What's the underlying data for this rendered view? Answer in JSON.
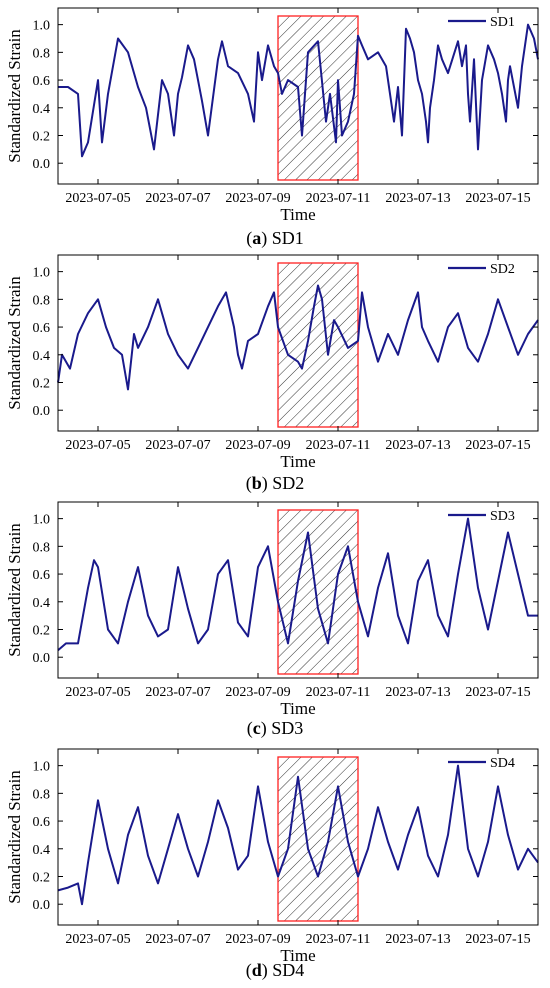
{
  "chart_data": [
    {
      "type": "line",
      "panel": "(a) SD1",
      "caption_letter": "a",
      "caption_name": "SD1",
      "xlabel": "Time",
      "ylabel": "Standardized Strain",
      "xticks": [
        "2023-07-05",
        "2023-07-07",
        "2023-07-09",
        "2023-07-11",
        "2023-07-13",
        "2023-07-15"
      ],
      "xlim": [
        "2023-07-04",
        "2023-07-16"
      ],
      "ylim": [
        -0.15,
        1.12
      ],
      "yticks": [
        "0.0",
        "0.2",
        "0.4",
        "0.6",
        "0.8",
        "1.0"
      ],
      "highlight_range": [
        "2023-07-09 12:00",
        "2023-07-11 12:00"
      ],
      "series": [
        {
          "name": "SD1",
          "color": "#1a1a8c",
          "x_days": [
            0,
            0.25,
            0.5,
            0.6,
            0.75,
            1.0,
            1.1,
            1.25,
            1.5,
            1.75,
            1.9,
            2.0,
            2.2,
            2.4,
            2.6,
            2.75,
            2.9,
            3.0,
            3.1,
            3.25,
            3.4,
            3.5,
            3.6,
            3.75,
            4.0,
            4.1,
            4.25,
            4.5,
            4.75,
            4.9,
            5.0,
            5.1,
            5.25,
            5.4,
            5.5,
            5.6,
            5.75,
            6.0,
            6.1,
            6.25,
            6.5,
            6.7,
            6.8,
            6.95,
            7.0,
            7.1,
            7.25,
            7.4,
            7.5,
            7.6,
            7.75,
            8.0,
            8.2,
            8.4,
            8.5,
            8.6,
            8.7,
            8.8,
            8.9,
            9.0,
            9.1,
            9.2,
            9.25,
            9.3,
            9.4,
            9.5,
            9.6,
            9.75,
            10.0,
            10.1,
            10.2,
            10.25,
            10.3,
            10.4,
            10.5,
            10.6,
            10.75,
            10.9,
            11.0,
            11.1,
            11.2,
            11.25,
            11.3,
            11.4,
            11.5,
            11.6,
            11.75,
            11.9,
            12.0
          ],
          "values": [
            0.55,
            0.55,
            0.5,
            0.05,
            0.15,
            0.6,
            0.15,
            0.5,
            0.9,
            0.8,
            0.65,
            0.55,
            0.4,
            0.1,
            0.6,
            0.5,
            0.2,
            0.5,
            0.62,
            0.85,
            0.75,
            0.6,
            0.45,
            0.2,
            0.75,
            0.88,
            0.7,
            0.65,
            0.5,
            0.3,
            0.8,
            0.6,
            0.85,
            0.7,
            0.65,
            0.5,
            0.6,
            0.55,
            0.2,
            0.8,
            0.88,
            0.3,
            0.5,
            0.15,
            0.6,
            0.2,
            0.3,
            0.5,
            0.92,
            0.85,
            0.75,
            0.8,
            0.7,
            0.3,
            0.55,
            0.2,
            0.97,
            0.9,
            0.8,
            0.6,
            0.5,
            0.3,
            0.15,
            0.4,
            0.6,
            0.85,
            0.75,
            0.65,
            0.88,
            0.7,
            0.85,
            0.5,
            0.3,
            0.75,
            0.1,
            0.6,
            0.85,
            0.75,
            0.65,
            0.5,
            0.3,
            0.6,
            0.7,
            0.55,
            0.4,
            0.7,
            1.0,
            0.9,
            0.75
          ]
        }
      ]
    },
    {
      "type": "line",
      "panel": "(b) SD2",
      "caption_letter": "b",
      "caption_name": "SD2",
      "xlabel": "Time",
      "ylabel": "Standardized Strain",
      "xticks": [
        "2023-07-05",
        "2023-07-07",
        "2023-07-09",
        "2023-07-11",
        "2023-07-13",
        "2023-07-15"
      ],
      "xlim": [
        "2023-07-04",
        "2023-07-16"
      ],
      "ylim": [
        -0.15,
        1.12
      ],
      "yticks": [
        "0.0",
        "0.2",
        "0.4",
        "0.6",
        "0.8",
        "1.0"
      ],
      "highlight_range": [
        "2023-07-09 12:00",
        "2023-07-11 12:00"
      ],
      "series": [
        {
          "name": "SD2",
          "color": "#1a1a8c",
          "x_days": [
            0,
            0.1,
            0.3,
            0.5,
            0.75,
            1.0,
            1.2,
            1.4,
            1.6,
            1.75,
            1.9,
            2.0,
            2.25,
            2.5,
            2.75,
            3.0,
            3.25,
            3.5,
            3.75,
            4.0,
            4.2,
            4.4,
            4.5,
            4.6,
            4.75,
            5.0,
            5.25,
            5.4,
            5.5,
            5.75,
            6.0,
            6.1,
            6.25,
            6.4,
            6.5,
            6.6,
            6.75,
            6.9,
            7.0,
            7.25,
            7.5,
            7.6,
            7.75,
            8.0,
            8.25,
            8.5,
            8.75,
            9.0,
            9.1,
            9.25,
            9.5,
            9.75,
            10.0,
            10.25,
            10.5,
            10.75,
            11.0,
            11.25,
            11.5,
            11.75,
            12.0
          ],
          "values": [
            0.2,
            0.4,
            0.3,
            0.55,
            0.7,
            0.8,
            0.6,
            0.45,
            0.4,
            0.15,
            0.55,
            0.45,
            0.6,
            0.8,
            0.55,
            0.4,
            0.3,
            0.45,
            0.6,
            0.75,
            0.85,
            0.6,
            0.4,
            0.3,
            0.5,
            0.55,
            0.75,
            0.85,
            0.6,
            0.4,
            0.35,
            0.3,
            0.5,
            0.75,
            0.9,
            0.8,
            0.4,
            0.65,
            0.6,
            0.45,
            0.5,
            0.85,
            0.6,
            0.35,
            0.55,
            0.4,
            0.65,
            0.85,
            0.6,
            0.5,
            0.35,
            0.6,
            0.7,
            0.45,
            0.35,
            0.55,
            0.8,
            0.6,
            0.4,
            0.55,
            0.65
          ]
        }
      ]
    },
    {
      "type": "line",
      "panel": "(c) SD3",
      "caption_letter": "c",
      "caption_name": "SD3",
      "xlabel": "Time",
      "ylabel": "Standardized Strain",
      "xticks": [
        "2023-07-05",
        "2023-07-07",
        "2023-07-09",
        "2023-07-11",
        "2023-07-13",
        "2023-07-15"
      ],
      "xlim": [
        "2023-07-04",
        "2023-07-16"
      ],
      "ylim": [
        -0.15,
        1.12
      ],
      "yticks": [
        "0.0",
        "0.2",
        "0.4",
        "0.6",
        "0.8",
        "1.0"
      ],
      "highlight_range": [
        "2023-07-09 12:00",
        "2023-07-11 12:00"
      ],
      "series": [
        {
          "name": "SD3",
          "color": "#1a1a8c",
          "x_days": [
            0,
            0.2,
            0.5,
            0.75,
            0.9,
            1.0,
            1.25,
            1.5,
            1.75,
            2.0,
            2.25,
            2.5,
            2.75,
            3.0,
            3.25,
            3.5,
            3.75,
            4.0,
            4.25,
            4.5,
            4.75,
            5.0,
            5.25,
            5.5,
            5.75,
            6.0,
            6.25,
            6.5,
            6.75,
            7.0,
            7.25,
            7.5,
            7.75,
            8.0,
            8.25,
            8.5,
            8.75,
            9.0,
            9.25,
            9.5,
            9.75,
            10.0,
            10.25,
            10.5,
            10.75,
            11.0,
            11.25,
            11.5,
            11.75,
            12.0
          ],
          "values": [
            0.05,
            0.1,
            0.1,
            0.5,
            0.7,
            0.65,
            0.2,
            0.1,
            0.4,
            0.65,
            0.3,
            0.15,
            0.2,
            0.65,
            0.35,
            0.1,
            0.2,
            0.6,
            0.7,
            0.25,
            0.15,
            0.65,
            0.8,
            0.4,
            0.1,
            0.55,
            0.9,
            0.35,
            0.1,
            0.6,
            0.8,
            0.4,
            0.15,
            0.5,
            0.75,
            0.3,
            0.1,
            0.55,
            0.7,
            0.3,
            0.15,
            0.6,
            1.0,
            0.5,
            0.2,
            0.55,
            0.9,
            0.6,
            0.3,
            0.3
          ]
        }
      ]
    },
    {
      "type": "line",
      "panel": "(d) SD4",
      "caption_letter": "d",
      "caption_name": "SD4",
      "xlabel": "Time",
      "ylabel": "Standardized Strain",
      "xticks": [
        "2023-07-05",
        "2023-07-07",
        "2023-07-09",
        "2023-07-11",
        "2023-07-13",
        "2023-07-15"
      ],
      "xlim": [
        "2023-07-04",
        "2023-07-16"
      ],
      "ylim": [
        -0.15,
        1.12
      ],
      "yticks": [
        "0.0",
        "0.2",
        "0.4",
        "0.6",
        "0.8",
        "1.0"
      ],
      "highlight_range": [
        "2023-07-09 12:00",
        "2023-07-11 12:00"
      ],
      "series": [
        {
          "name": "SD4",
          "color": "#1a1a8c",
          "x_days": [
            0,
            0.25,
            0.5,
            0.6,
            0.75,
            1.0,
            1.25,
            1.5,
            1.75,
            2.0,
            2.25,
            2.5,
            2.75,
            3.0,
            3.25,
            3.5,
            3.75,
            4.0,
            4.25,
            4.5,
            4.75,
            5.0,
            5.25,
            5.5,
            5.75,
            6.0,
            6.25,
            6.5,
            6.75,
            7.0,
            7.25,
            7.5,
            7.75,
            8.0,
            8.25,
            8.5,
            8.75,
            9.0,
            9.25,
            9.5,
            9.75,
            10.0,
            10.25,
            10.5,
            10.75,
            11.0,
            11.25,
            11.5,
            11.75,
            12.0
          ],
          "values": [
            0.1,
            0.12,
            0.15,
            0.0,
            0.3,
            0.75,
            0.4,
            0.15,
            0.5,
            0.7,
            0.35,
            0.15,
            0.4,
            0.65,
            0.4,
            0.2,
            0.45,
            0.75,
            0.55,
            0.25,
            0.35,
            0.85,
            0.45,
            0.2,
            0.4,
            0.92,
            0.4,
            0.2,
            0.45,
            0.85,
            0.45,
            0.2,
            0.4,
            0.7,
            0.45,
            0.25,
            0.5,
            0.7,
            0.35,
            0.2,
            0.5,
            1.0,
            0.4,
            0.2,
            0.45,
            0.85,
            0.5,
            0.25,
            0.4,
            0.3
          ]
        }
      ]
    }
  ]
}
